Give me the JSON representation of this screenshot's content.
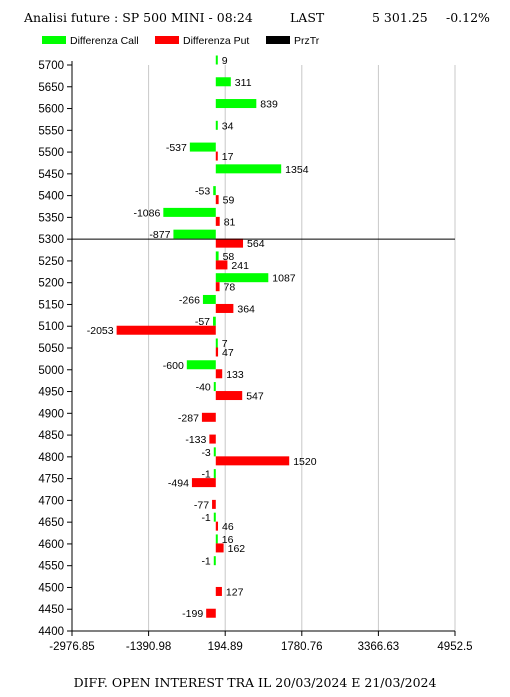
{
  "header": {
    "title": "Analisi future : SP 500 MINI - 08:24",
    "last_label": "LAST",
    "last_value": "5 301.25",
    "last_change": "-0.12%"
  },
  "legend": [
    {
      "label": "Differenza Call",
      "color": "#00ff00"
    },
    {
      "label": "Differenza Put",
      "color": "#ff0000"
    },
    {
      "label": "PrzTr",
      "color": "#000000"
    }
  ],
  "footer": "DIFF. OPEN INTEREST TRA IL 20/03/2024 E 21/03/2024",
  "chart_data": {
    "type": "bar",
    "orientation": "horizontal",
    "strikes": [
      5700,
      5650,
      5600,
      5550,
      5500,
      5450,
      5400,
      5350,
      5300,
      5250,
      5200,
      5150,
      5100,
      5050,
      5000,
      4950,
      4900,
      4850,
      4800,
      4750,
      4700,
      4650,
      4600,
      4550,
      4500,
      4450,
      4400
    ],
    "series": [
      {
        "name": "Differenza Call",
        "color": "#00ff00",
        "points": [
          {
            "strike": 5700,
            "value": 9
          },
          {
            "strike": 5650,
            "value": 311
          },
          {
            "strike": 5600,
            "value": 839
          },
          {
            "strike": 5550,
            "value": 34
          },
          {
            "strike": 5500,
            "value": -537
          },
          {
            "strike": 5450,
            "value": 1354
          },
          {
            "strike": 5400,
            "value": -53
          },
          {
            "strike": 5350,
            "value": -1086
          },
          {
            "strike": 5300,
            "value": -877
          },
          {
            "strike": 5250,
            "value": 58
          },
          {
            "strike": 5200,
            "value": 1087
          },
          {
            "strike": 5150,
            "value": -266
          },
          {
            "strike": 5100,
            "value": -57
          },
          {
            "strike": 5050,
            "value": 7
          },
          {
            "strike": 5000,
            "value": -600
          },
          {
            "strike": 4950,
            "value": -40
          },
          {
            "strike": 4800,
            "value": -3
          },
          {
            "strike": 4750,
            "value": -1
          },
          {
            "strike": 4650,
            "value": -1
          },
          {
            "strike": 4600,
            "value": 16
          },
          {
            "strike": 4550,
            "value": -1
          }
        ]
      },
      {
        "name": "Differenza Put",
        "color": "#ff0000",
        "points": [
          {
            "strike": 5500,
            "value": 17
          },
          {
            "strike": 5400,
            "value": 59
          },
          {
            "strike": 5350,
            "value": 81
          },
          {
            "strike": 5300,
            "value": 564
          },
          {
            "strike": 5250,
            "value": 241
          },
          {
            "strike": 5200,
            "value": 78
          },
          {
            "strike": 5150,
            "value": 364
          },
          {
            "strike": 5100,
            "value": -2053
          },
          {
            "strike": 5050,
            "value": 47
          },
          {
            "strike": 5000,
            "value": 133
          },
          {
            "strike": 4950,
            "value": 547
          },
          {
            "strike": 4900,
            "value": -287
          },
          {
            "strike": 4850,
            "value": -133
          },
          {
            "strike": 4800,
            "value": 1520
          },
          {
            "strike": 4750,
            "value": -494
          },
          {
            "strike": 4700,
            "value": -77
          },
          {
            "strike": 4650,
            "value": 46
          },
          {
            "strike": 4600,
            "value": 162
          },
          {
            "strike": 4500,
            "value": 127
          },
          {
            "strike": 4450,
            "value": -199
          }
        ]
      }
    ],
    "price_line": {
      "name": "PrzTr",
      "value": 5300
    },
    "x_ticks": [
      "-2976.85",
      "-1390.98",
      "194.89",
      "1780.76",
      "3366.63",
      "4952.5"
    ],
    "xlim": [
      -2976.85,
      4952.5
    ],
    "ylim": [
      4400,
      5700
    ],
    "grid": true,
    "legend_position": "top-left"
  }
}
